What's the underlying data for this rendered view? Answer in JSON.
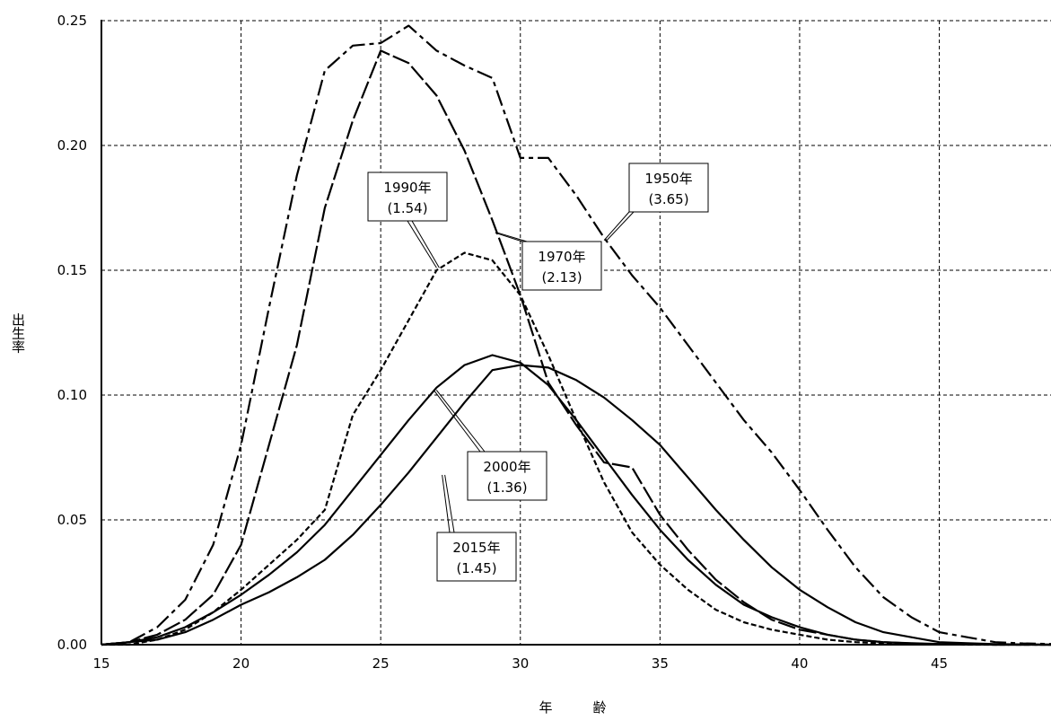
{
  "chart_data": {
    "type": "line",
    "title": "",
    "xlabel": "年　　　齢",
    "ylabel": "出生率",
    "xlim": [
      15,
      49
    ],
    "ylim": [
      0,
      0.25
    ],
    "x_ticks": [
      15,
      20,
      25,
      30,
      35,
      40,
      45
    ],
    "y_ticks": [
      "0.00",
      "0.05",
      "0.10",
      "0.15",
      "0.20",
      "0.25"
    ],
    "grid": true,
    "series": [
      {
        "name": "1950年",
        "tfr": "(3.65)",
        "x": [
          15,
          16,
          17,
          18,
          19,
          20,
          21,
          22,
          23,
          24,
          25,
          26,
          27,
          28,
          29,
          30,
          31,
          32,
          33,
          34,
          35,
          36,
          37,
          38,
          39,
          40,
          41,
          42,
          43,
          44,
          45,
          46,
          47,
          48,
          49
        ],
        "values": [
          0.0,
          0.001,
          0.007,
          0.018,
          0.04,
          0.08,
          0.135,
          0.188,
          0.23,
          0.24,
          0.241,
          0.248,
          0.238,
          0.232,
          0.227,
          0.195,
          0.195,
          0.18,
          0.163,
          0.148,
          0.135,
          0.12,
          0.105,
          0.09,
          0.077,
          0.062,
          0.046,
          0.031,
          0.019,
          0.011,
          0.005,
          0.003,
          0.001,
          0.0005,
          0.0003
        ],
        "dash": "18,5,5,5"
      },
      {
        "name": "1970年",
        "tfr": "(2.13)",
        "x": [
          15,
          16,
          17,
          18,
          19,
          20,
          21,
          22,
          23,
          24,
          25,
          26,
          27,
          28,
          29,
          30,
          31,
          32,
          33,
          34,
          35,
          36,
          37,
          38,
          39,
          40,
          41,
          42,
          43,
          44,
          45,
          46,
          47,
          48,
          49
        ],
        "values": [
          0.0,
          0.001,
          0.004,
          0.01,
          0.02,
          0.04,
          0.08,
          0.12,
          0.175,
          0.21,
          0.238,
          0.233,
          0.22,
          0.198,
          0.17,
          0.14,
          0.105,
          0.088,
          0.073,
          0.071,
          0.052,
          0.038,
          0.026,
          0.017,
          0.01,
          0.006,
          0.004,
          0.002,
          0.001,
          0.0005,
          0.0002,
          0.0001,
          0.0,
          0.0,
          0.0
        ],
        "dash": "20,4"
      },
      {
        "name": "1990年",
        "tfr": "(1.54)",
        "x": [
          15,
          16,
          17,
          18,
          19,
          20,
          21,
          22,
          23,
          24,
          25,
          26,
          27,
          28,
          29,
          30,
          31,
          32,
          33,
          34,
          35,
          36,
          37,
          38,
          39,
          40,
          41,
          42,
          43,
          44,
          45,
          46,
          47,
          48,
          49
        ],
        "values": [
          0.0,
          0.0,
          0.002,
          0.006,
          0.013,
          0.022,
          0.032,
          0.042,
          0.054,
          0.092,
          0.11,
          0.13,
          0.15,
          0.157,
          0.154,
          0.14,
          0.116,
          0.09,
          0.065,
          0.045,
          0.032,
          0.022,
          0.014,
          0.009,
          0.006,
          0.004,
          0.002,
          0.001,
          0.0005,
          0.0002,
          0.0001,
          0.0,
          0.0,
          0.0,
          0.0
        ],
        "dash": "6,3"
      },
      {
        "name": "2000年",
        "tfr": "(1.36)",
        "x": [
          15,
          16,
          17,
          18,
          19,
          20,
          21,
          22,
          23,
          24,
          25,
          26,
          27,
          28,
          29,
          30,
          31,
          32,
          33,
          34,
          35,
          36,
          37,
          38,
          39,
          40,
          41,
          42,
          43,
          44,
          45,
          46,
          47,
          48,
          49
        ],
        "values": [
          0.0,
          0.001,
          0.003,
          0.007,
          0.013,
          0.02,
          0.028,
          0.037,
          0.048,
          0.062,
          0.076,
          0.09,
          0.103,
          0.112,
          0.116,
          0.113,
          0.104,
          0.09,
          0.075,
          0.06,
          0.046,
          0.034,
          0.024,
          0.016,
          0.011,
          0.007,
          0.004,
          0.002,
          0.001,
          0.0006,
          0.0003,
          0.0001,
          0.0,
          0.0,
          0.0
        ],
        "dash": "none"
      },
      {
        "name": "2015年",
        "tfr": "(1.45)",
        "x": [
          15,
          16,
          17,
          18,
          19,
          20,
          21,
          22,
          23,
          24,
          25,
          26,
          27,
          28,
          29,
          30,
          31,
          32,
          33,
          34,
          35,
          36,
          37,
          38,
          39,
          40,
          41,
          42,
          43,
          44,
          45,
          46,
          47,
          48,
          49
        ],
        "values": [
          0.0,
          0.001,
          0.002,
          0.005,
          0.01,
          0.016,
          0.021,
          0.027,
          0.034,
          0.044,
          0.056,
          0.069,
          0.083,
          0.097,
          0.11,
          0.112,
          0.111,
          0.106,
          0.099,
          0.09,
          0.08,
          0.067,
          0.054,
          0.042,
          0.031,
          0.022,
          0.015,
          0.009,
          0.005,
          0.003,
          0.001,
          0.0006,
          0.0002,
          0.0001,
          0.0
        ],
        "dash": "none"
      }
    ],
    "annotations": [
      {
        "series": "1950年",
        "line1": "1950年",
        "line2": "(3.65)",
        "point_x": 33,
        "point_y": 0.162
      },
      {
        "series": "1970年",
        "line1": "1970年",
        "line2": "(2.13)",
        "point_x": 29.1,
        "point_y": 0.165
      },
      {
        "series": "1990年",
        "line1": "1990年",
        "line2": "(1.54)",
        "point_x": 27,
        "point_y": 0.151
      },
      {
        "series": "2000年",
        "line1": "2000年",
        "line2": "(1.36)",
        "point_x": 26.9,
        "point_y": 0.102
      },
      {
        "series": "2015年",
        "line1": "2015年",
        "line2": "(1.45)",
        "point_x": 27.2,
        "point_y": 0.068
      }
    ]
  }
}
